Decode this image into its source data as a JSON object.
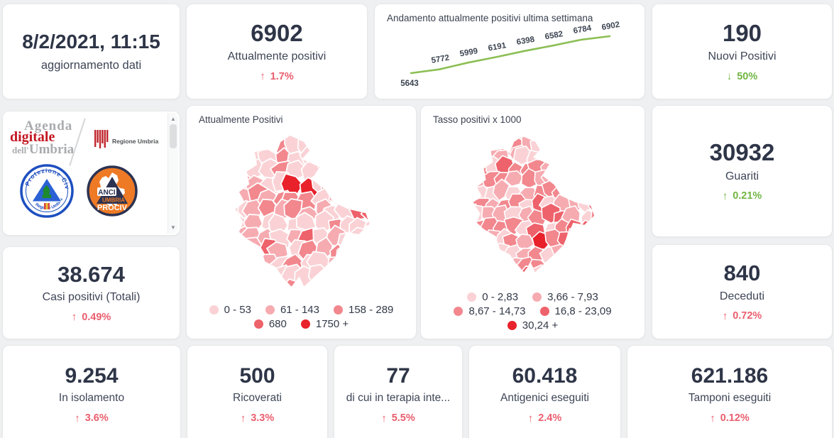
{
  "theme": {
    "background": "#eef0f1",
    "card_bg": "#ffffff",
    "number_color": "#2e3547",
    "label_color": "#3d4556",
    "red": "#ea5e6e",
    "green": "#72b644",
    "chart_line_green": "#8cbf54",
    "map_palette": [
      "#fad2d5",
      "#f6abb1",
      "#f2878e",
      "#ee626b",
      "#e8212b"
    ]
  },
  "cards": {
    "update": {
      "title": "8/2/2021, 11:15",
      "subtitle": "aggiornamento dati"
    },
    "attualmente_positivi": {
      "value": "6902",
      "label": "Attualmente positivi",
      "arrow": "↑",
      "trend": "1.7%",
      "trend_color": "red"
    },
    "nuovi_positivi": {
      "value": "190",
      "label": "Nuovi Positivi",
      "arrow": "↓",
      "trend": "50%",
      "trend_color": "green"
    },
    "guariti": {
      "value": "30932",
      "label": "Guariti",
      "arrow": "↑",
      "trend": "0.21%",
      "trend_color": "green"
    },
    "casi_totali": {
      "value": "38.674",
      "label": "Casi positivi (Totali)",
      "arrow": "↑",
      "trend": "0.49%",
      "trend_color": "red"
    },
    "deceduti": {
      "value": "840",
      "label": "Deceduti",
      "arrow": "↑",
      "trend": "0.72%",
      "trend_color": "red"
    },
    "isolamento": {
      "value": "9.254",
      "label": "In isolamento",
      "arrow": "↑",
      "trend": "3.6%",
      "trend_color": "red"
    },
    "ricoverati": {
      "value": "500",
      "label": "Ricoverati",
      "arrow": "↑",
      "trend": "3.3%",
      "trend_color": "red"
    },
    "terapia_intensiva": {
      "value": "77",
      "label": "di cui in terapia inte...",
      "arrow": "↑",
      "trend": "5.5%",
      "trend_color": "red"
    },
    "antigenici": {
      "value": "60.418",
      "label": "Antigenici eseguiti",
      "arrow": "↑",
      "trend": "2.4%",
      "trend_color": "red"
    },
    "tamponi": {
      "value": "621.186",
      "label": "Tamponi eseguiti",
      "arrow": "↑",
      "trend": "0.12%",
      "trend_color": "red"
    }
  },
  "chart_data": {
    "type": "line",
    "title": "Andamento attualmente positivi ultima settimana",
    "values": [
      5643,
      5772,
      5999,
      6191,
      6398,
      6582,
      6784,
      6902
    ],
    "data_labels": [
      "5643",
      "5772",
      "5999",
      "6191",
      "6398",
      "6582",
      "6784",
      "6902"
    ],
    "ylim": [
      5600,
      6950
    ],
    "grid": false,
    "line_color": "#8cbf54",
    "label_color": "#3b4350"
  },
  "maps": {
    "attualmente": {
      "title": "Attualmente Positivi",
      "type": "choropleth",
      "legend_rows": [
        [
          {
            "label": "0 - 53",
            "color": 0
          },
          {
            "label": "61 - 143",
            "color": 1
          },
          {
            "label": "158 - 289",
            "color": 2
          }
        ],
        [
          {
            "label": "680",
            "color": 3
          },
          {
            "label": "1750 +",
            "color": 4
          }
        ]
      ]
    },
    "tasso": {
      "title": "Tasso positivi x 1000",
      "type": "choropleth",
      "legend_rows": [
        [
          {
            "label": "0 - 2,83",
            "color": 0
          },
          {
            "label": "3,66 - 7,93",
            "color": 1
          }
        ],
        [
          {
            "label": "8,67 - 14,73",
            "color": 2
          },
          {
            "label": "16,8 - 23,09",
            "color": 3
          }
        ],
        [
          {
            "label": "30,24 +",
            "color": 4
          }
        ]
      ]
    }
  },
  "logos": {
    "agenda_top": "Agenda",
    "agenda_mid": "digitale",
    "agenda_bottom_small": "dell'",
    "agenda_bottom": "Umbria",
    "regione_label": "Regione Umbria",
    "protezione_arc_top": "Protezione Civile",
    "protezione_arc_bottom": "Regione Umbria",
    "anci": "ANCI",
    "anci_umbria": "UMBRIA",
    "prociv": "PROCIV"
  }
}
